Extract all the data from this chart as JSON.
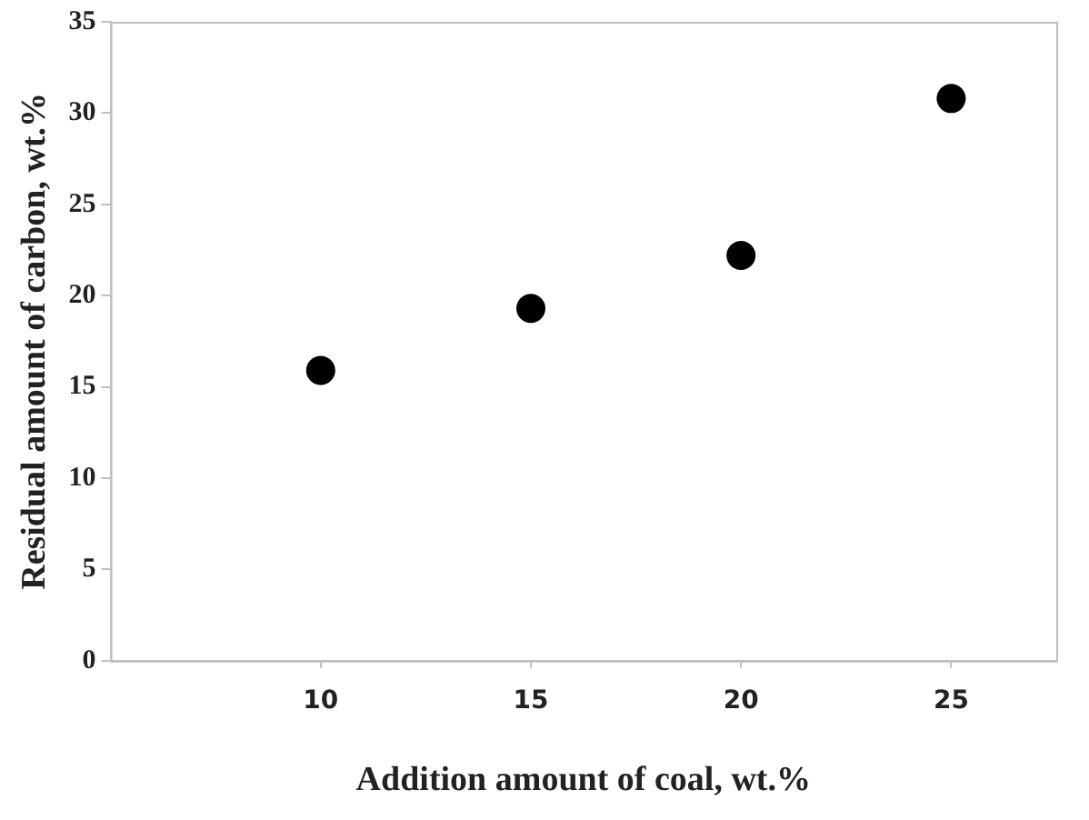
{
  "chart_data": {
    "type": "scatter",
    "xlabel": "Addition amount of coal, wt.%",
    "ylabel": "Residual amount of carbon, wt.%",
    "x": [
      10,
      15,
      20,
      25
    ],
    "series": [
      {
        "color": "#000000",
        "values": [
          15.9,
          19.3,
          22.2,
          30.8
        ]
      }
    ],
    "xlim": [
      5,
      27.5
    ],
    "xticks": [
      10,
      15,
      20,
      25
    ],
    "ylim": [
      0,
      35
    ],
    "yticks": [
      0,
      5,
      10,
      15,
      20,
      25,
      30,
      35
    ],
    "marker": "circle",
    "grid": false,
    "legend": false
  }
}
